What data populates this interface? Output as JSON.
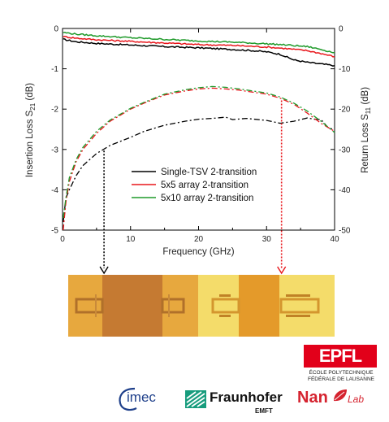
{
  "chart_data": {
    "type": "line",
    "xlabel": "Frequency (GHz)",
    "ylabel_left": "Insertion Loss S",
    "ylabel_left_sub": "21",
    "ylabel_left_unit": " (dB)",
    "ylabel_right": "Return Loss S",
    "ylabel_right_sub": "11",
    "ylabel_right_unit": " (dB)",
    "xlim": [
      0,
      40
    ],
    "ylim_left": [
      -5,
      0
    ],
    "ylim_right": [
      -50,
      0
    ],
    "xticks": [
      "0",
      "10",
      "20",
      "30",
      "40"
    ],
    "yticks_left": [
      "0",
      "-1",
      "-2",
      "-3",
      "-4",
      "-5"
    ],
    "yticks_right": [
      "0",
      "-10",
      "-20",
      "-30",
      "-40",
      "-50"
    ],
    "legend_position": "center",
    "series": [
      {
        "name": "Single-TSV 2-transition",
        "color": "#000000",
        "insertion_loss": {
          "x": [
            0.1,
            2,
            5,
            10,
            15,
            20,
            25,
            28,
            30,
            32,
            34,
            36,
            38,
            40
          ],
          "y": [
            -0.27,
            -0.33,
            -0.37,
            -0.41,
            -0.45,
            -0.48,
            -0.52,
            -0.55,
            -0.58,
            -0.64,
            -0.78,
            -0.84,
            -0.88,
            -0.92
          ]
        },
        "return_loss": {
          "x": [
            0.1,
            0.5,
            1,
            2,
            3,
            5,
            7,
            10,
            12,
            15,
            18,
            20,
            22,
            24,
            25,
            27,
            30,
            32,
            34,
            35,
            36,
            37,
            38,
            39,
            40
          ],
          "y": [
            -48,
            -42,
            -40,
            -36.5,
            -34,
            -31,
            -29,
            -27,
            -25.5,
            -24,
            -23,
            -22.5,
            -22.3,
            -22,
            -22.6,
            -22.3,
            -22.8,
            -23.5,
            -23,
            -22.6,
            -22.2,
            -22.5,
            -22.6,
            -24.5,
            -25.2
          ]
        }
      },
      {
        "name": "5x5 array 2-transition",
        "color": "#e8161b",
        "insertion_loss": {
          "x": [
            0.1,
            2,
            5,
            10,
            15,
            20,
            25,
            30,
            33,
            36,
            38,
            40
          ],
          "y": [
            -0.2,
            -0.24,
            -0.28,
            -0.32,
            -0.36,
            -0.4,
            -0.42,
            -0.46,
            -0.5,
            -0.55,
            -0.62,
            -0.7
          ]
        },
        "return_loss": {
          "x": [
            0.1,
            0.5,
            1,
            2,
            3,
            5,
            7,
            10,
            12,
            15,
            18,
            20,
            22,
            24,
            26,
            28,
            30,
            32,
            34,
            36,
            38,
            40
          ],
          "y": [
            -50,
            -43,
            -38,
            -33,
            -30,
            -26,
            -23,
            -20,
            -18.5,
            -16.5,
            -15.5,
            -15,
            -14.8,
            -15,
            -15.3,
            -15.8,
            -16.3,
            -17.3,
            -18.8,
            -21,
            -23.5,
            -25.5
          ]
        }
      },
      {
        "name": "5x10 array 2-transition",
        "color": "#1f9a2a",
        "insertion_loss": {
          "x": [
            0.1,
            2,
            5,
            10,
            15,
            20,
            25,
            30,
            33,
            36,
            38,
            40
          ],
          "y": [
            -0.1,
            -0.14,
            -0.18,
            -0.23,
            -0.27,
            -0.31,
            -0.34,
            -0.38,
            -0.41,
            -0.45,
            -0.52,
            -0.6
          ]
        },
        "return_loss": {
          "x": [
            0.1,
            0.5,
            1,
            2,
            3,
            5,
            7,
            10,
            12,
            15,
            18,
            20,
            22,
            24,
            26,
            28,
            30,
            32,
            34,
            36,
            38,
            40
          ],
          "y": [
            -47,
            -42,
            -37,
            -32.5,
            -29.5,
            -25.5,
            -22.7,
            -19.8,
            -18.3,
            -16.3,
            -15.2,
            -14.7,
            -14.4,
            -14.6,
            -15,
            -15.5,
            -16,
            -17,
            -18.5,
            -20.5,
            -23,
            -25.8
          ]
        }
      }
    ],
    "annotations": [
      {
        "from_x": 6.1,
        "color": "#000000",
        "style": "dotted-arrow"
      },
      {
        "from_x": 32.2,
        "color": "#e8161b",
        "style": "dotted-arrow"
      }
    ]
  },
  "logos": {
    "epfl": "EPFL",
    "epfl_line1": "ÉCOLE POLYTECHNIQUE",
    "epfl_line2": "FÉDÉRALE DE LAUSANNE",
    "imec": "imec",
    "fraunhofer": "Fraunhofer",
    "fraunhofer_sub": "EMFT",
    "nanolab": "Nan",
    "nanolab_tail": "Lab"
  },
  "colors": {
    "epfl_red": "#e2001a",
    "imec_blue": "#1e3f8a",
    "fraunhofer_green": "#179c7d",
    "nanolab_red": "#d5232f",
    "photo_gold": "#e7a83e",
    "photo_light": "#f4e07a"
  }
}
